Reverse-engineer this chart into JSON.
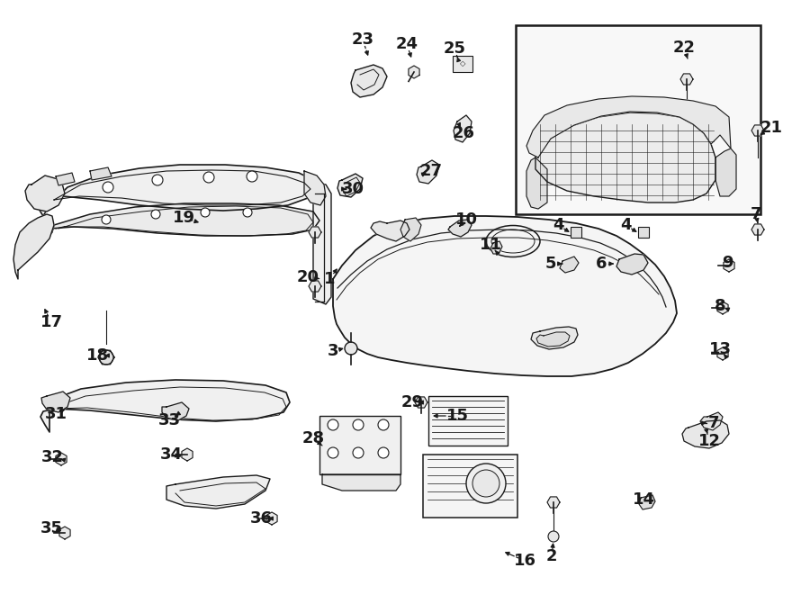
{
  "bg_color": "#ffffff",
  "line_color": "#1a1a1a",
  "figsize": [
    9.0,
    6.61
  ],
  "dpi": 100,
  "labels": [
    [
      "1",
      370,
      310
    ],
    [
      "2",
      613,
      570
    ],
    [
      "3",
      378,
      390
    ],
    [
      "4",
      638,
      255
    ],
    [
      "4",
      710,
      255
    ],
    [
      "5",
      633,
      295
    ],
    [
      "6",
      693,
      295
    ],
    [
      "7",
      840,
      240
    ],
    [
      "7",
      793,
      470
    ],
    [
      "8",
      800,
      340
    ],
    [
      "9",
      808,
      295
    ],
    [
      "10",
      530,
      248
    ],
    [
      "11",
      551,
      275
    ],
    [
      "12",
      790,
      490
    ],
    [
      "13",
      800,
      390
    ],
    [
      "14",
      718,
      558
    ],
    [
      "15",
      516,
      463
    ],
    [
      "16",
      583,
      618
    ],
    [
      "17",
      60,
      358
    ],
    [
      "18",
      113,
      395
    ],
    [
      "19",
      207,
      245
    ],
    [
      "20",
      342,
      310
    ],
    [
      "21",
      857,
      145
    ],
    [
      "22",
      763,
      57
    ],
    [
      "23",
      405,
      48
    ],
    [
      "24",
      455,
      53
    ],
    [
      "25",
      510,
      58
    ],
    [
      "26",
      518,
      148
    ],
    [
      "27",
      482,
      192
    ],
    [
      "28",
      352,
      488
    ],
    [
      "29",
      462,
      449
    ],
    [
      "30",
      395,
      213
    ],
    [
      "31",
      65,
      462
    ],
    [
      "32",
      60,
      510
    ],
    [
      "33",
      193,
      470
    ],
    [
      "34",
      194,
      507
    ],
    [
      "35",
      60,
      590
    ],
    [
      "36",
      295,
      577
    ]
  ]
}
